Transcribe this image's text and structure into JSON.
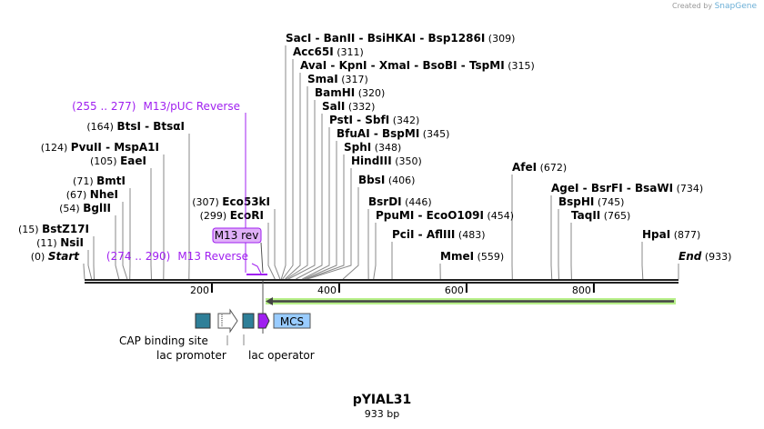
{
  "credit": {
    "prefix": "Created by",
    "brand": "SnapGene"
  },
  "plasmid": {
    "name": "pYIAL31",
    "length_label": "933 bp",
    "length": 933
  },
  "enzymes": [
    {
      "name": "SacI  - BanII  - BsiHKAI  - Bsp1286I",
      "pos": 309
    },
    {
      "name": "Acc65I",
      "pos": 311
    },
    {
      "name": "AvaI  - KpnI  - XmaI  - BsoBI  - TspMI",
      "pos": 315
    },
    {
      "name": "SmaI",
      "pos": 317
    },
    {
      "name": "BamHI",
      "pos": 320
    },
    {
      "name": "SalI",
      "pos": 332
    },
    {
      "name": "PstI  - SbfI",
      "pos": 342
    },
    {
      "name": "BfuAI  - BspMI",
      "pos": 345
    },
    {
      "name": "SphI",
      "pos": 348
    },
    {
      "name": "HindIII",
      "pos": 350
    },
    {
      "name": "BbsI",
      "pos": 406
    },
    {
      "name": "BsrDI",
      "pos": 446
    },
    {
      "name": "PpuMI  - EcoO109I",
      "pos": 454
    },
    {
      "name": "PciI  - AflIII",
      "pos": 483
    },
    {
      "name": "MmeI",
      "pos": 559
    },
    {
      "name": "AfeI",
      "pos": 672
    },
    {
      "name": "AgeI  - BsrFI  - BsaWI",
      "pos": 734
    },
    {
      "name": "BspHI",
      "pos": 745
    },
    {
      "name": "TaqII",
      "pos": 765
    },
    {
      "name": "HpaI",
      "pos": 877
    },
    {
      "name": "End",
      "pos": 933
    },
    {
      "name": "BtsI  - BtsαI",
      "pos": 164
    },
    {
      "name": "PvuII  - MspA1I",
      "pos": 124
    },
    {
      "name": "EaeI",
      "pos": 105
    },
    {
      "name": "BmtI",
      "pos": 71
    },
    {
      "name": "NheI",
      "pos": 67
    },
    {
      "name": "BglII",
      "pos": 54
    },
    {
      "name": "BstZ17I",
      "pos": 15
    },
    {
      "name": "NsiI",
      "pos": 11
    },
    {
      "name": "Start",
      "pos": 0
    },
    {
      "name": "Eco53kI",
      "pos": 307
    },
    {
      "name": "EcoRI",
      "pos": 299
    }
  ],
  "primers": [
    {
      "name": "M13/pUC Reverse",
      "range": "(255 .. 277)"
    },
    {
      "name": "M13 Reverse",
      "range": "(274 .. 290)"
    }
  ],
  "primer_box": "M13 rev",
  "ticks": [
    200,
    400,
    600,
    800
  ],
  "features": {
    "mcs": "MCS",
    "cap": "CAP binding site",
    "promoter": "lac promoter",
    "operator": "lac operator"
  },
  "colors": {
    "primer": "#a020f0",
    "teal": "#2e7f98",
    "mcs": "#99ccff",
    "orf": "#b8f08a"
  }
}
